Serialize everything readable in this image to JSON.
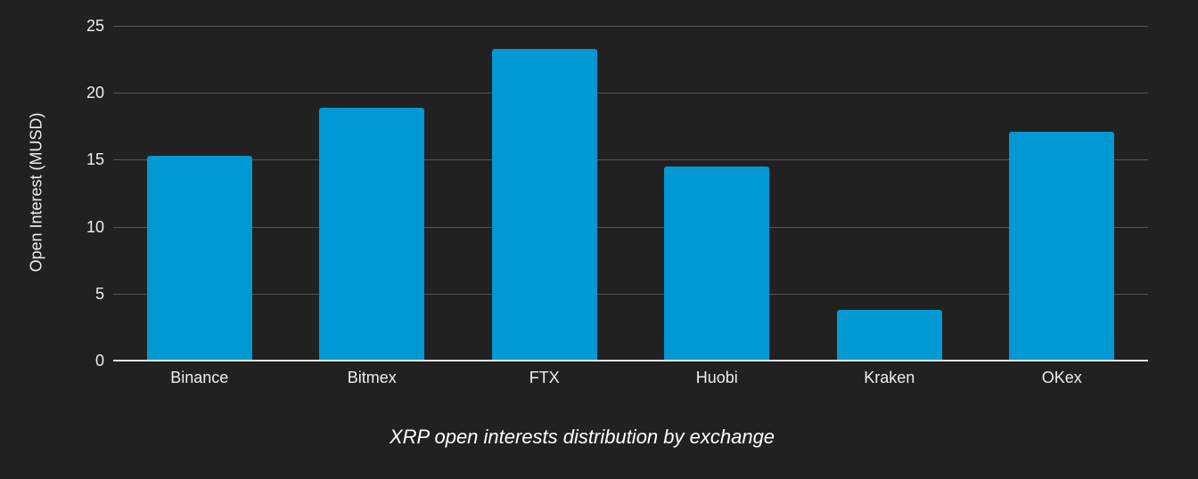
{
  "chart_data": {
    "type": "bar",
    "title": "XRP open interests distribution by exchange",
    "xlabel": "",
    "ylabel": "Open Interest (MUSD)",
    "categories": [
      "Binance",
      "Bitmex",
      "FTX",
      "Huobi",
      "Kraken",
      "OKex"
    ],
    "values": [
      15.3,
      18.9,
      23.3,
      14.5,
      3.8,
      17.1
    ],
    "ylim": [
      0,
      25
    ],
    "yticks": [
      0,
      5,
      10,
      15,
      20,
      25
    ],
    "grid": true,
    "legend": null,
    "bar_color": "#0099d4",
    "background_color": "#212121"
  }
}
